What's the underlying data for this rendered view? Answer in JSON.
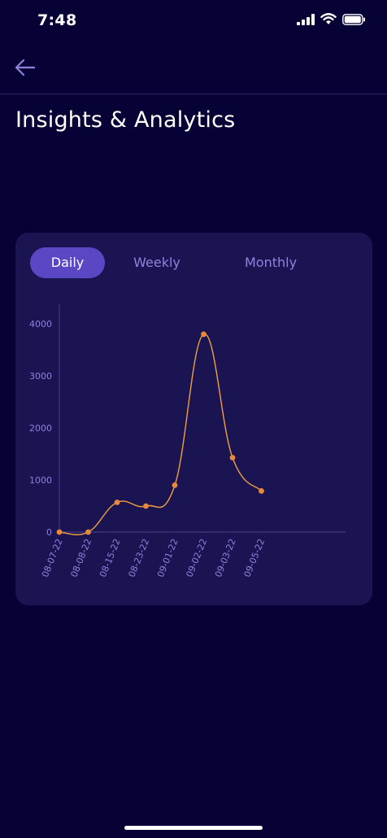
{
  "status_bar": {
    "time": "7:48",
    "icons": [
      "cellular-signal-icon",
      "wifi-icon",
      "battery-icon"
    ]
  },
  "nav": {
    "back_icon": "arrow-left-icon"
  },
  "page": {
    "title": "Insights & Analytics"
  },
  "tabs": [
    {
      "label": "Daily",
      "active": true
    },
    {
      "label": "Weekly",
      "active": false
    },
    {
      "label": "Monthly",
      "active": false
    }
  ],
  "colors": {
    "background": "#070235",
    "card": "#1b1452",
    "accent": "#5b47c4",
    "line": "#f0a040",
    "point": "#e8883a",
    "muted_text": "#8e82dd"
  },
  "chart_data": {
    "type": "line",
    "categories": [
      "08-07-22",
      "08-08-22",
      "08-15-22",
      "08-23-22",
      "09-01-22",
      "09-02-22",
      "09-03-22",
      "09-05-22"
    ],
    "values": [
      0,
      0,
      570,
      500,
      900,
      3800,
      1430,
      790
    ],
    "y_ticks": [
      0,
      1000,
      2000,
      3000,
      4000
    ],
    "ylim": [
      0,
      4000
    ],
    "smooth": true,
    "grid": false,
    "title": "",
    "xlabel": "",
    "ylabel": ""
  }
}
